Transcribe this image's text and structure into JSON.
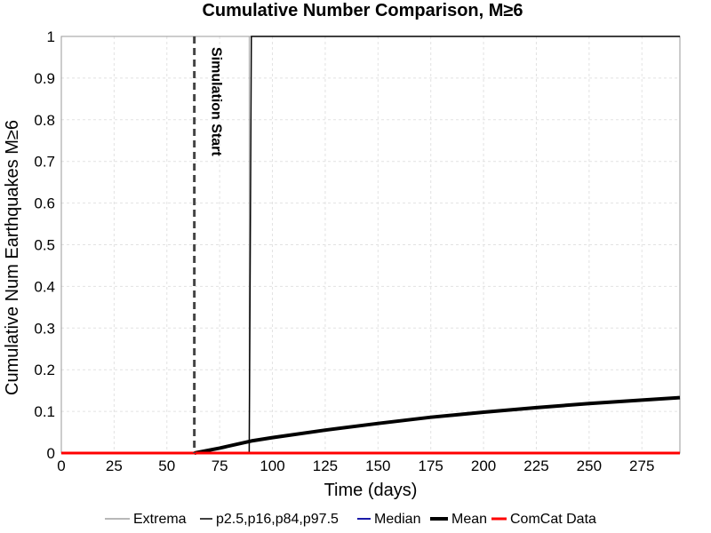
{
  "chart_data": {
    "type": "line",
    "title": "Cumulative Number Comparison, M≥6",
    "xlabel": "Time (days)",
    "ylabel": "Cumulative Num Earthquakes M≥6",
    "xlim": [
      0,
      293
    ],
    "ylim": [
      0,
      1
    ],
    "xticks": [
      0,
      25,
      50,
      75,
      100,
      125,
      150,
      175,
      200,
      225,
      250,
      275
    ],
    "yticks": [
      0,
      0.1,
      0.2,
      0.3,
      0.4,
      0.5,
      0.6,
      0.7,
      0.8,
      0.9,
      1
    ],
    "ytick_labels": [
      "0",
      "0.1",
      "0.2",
      "0.3",
      "0.4",
      "0.5",
      "0.6",
      "0.7",
      "0.8",
      "0.9",
      "1"
    ],
    "grid": true,
    "legend_position": "bottom",
    "annotation": {
      "label": "Simulation Start",
      "x": 63
    },
    "series": [
      {
        "name": "Extrema",
        "color": "#a0a0a0",
        "width": 1,
        "points": [
          [
            63,
            0
          ],
          [
            89,
            0
          ],
          [
            89,
            1
          ],
          [
            293,
            1
          ]
        ]
      },
      {
        "name": "p2.5,p16,p84,p97.5",
        "color": "#000000",
        "width": 1.5,
        "points": [
          [
            63,
            0
          ],
          [
            89,
            0
          ],
          [
            90,
            1
          ],
          [
            293,
            1
          ]
        ]
      },
      {
        "name": "Median",
        "color": "#1a1aa8",
        "width": 2,
        "points": [
          [
            63,
            0
          ],
          [
            293,
            0
          ]
        ]
      },
      {
        "name": "Mean",
        "color": "#000000",
        "width": 4,
        "points": [
          [
            63,
            0
          ],
          [
            75,
            0.012
          ],
          [
            90,
            0.029
          ],
          [
            100,
            0.037
          ],
          [
            125,
            0.055
          ],
          [
            150,
            0.071
          ],
          [
            175,
            0.086
          ],
          [
            200,
            0.098
          ],
          [
            225,
            0.109
          ],
          [
            250,
            0.119
          ],
          [
            275,
            0.127
          ],
          [
            293,
            0.133
          ]
        ]
      },
      {
        "name": "ComCat Data",
        "color": "#ff0000",
        "width": 3,
        "points": [
          [
            0,
            0
          ],
          [
            293,
            0
          ]
        ]
      }
    ]
  }
}
